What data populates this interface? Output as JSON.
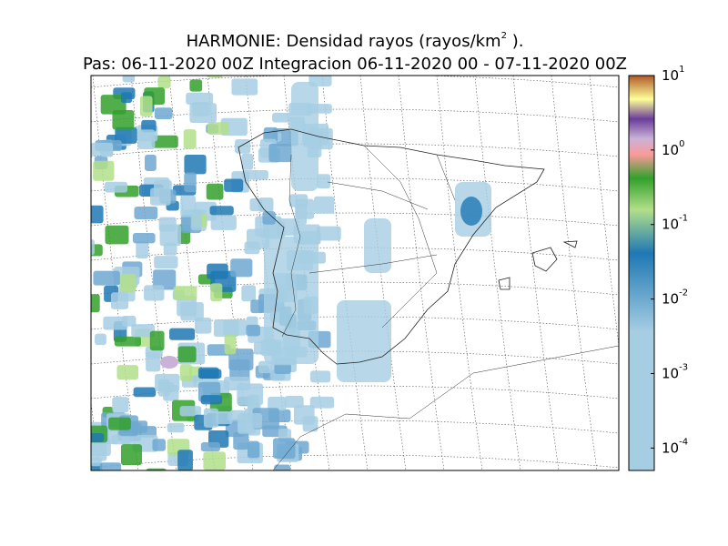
{
  "title": {
    "text": "HARMONIE: Densidad rayos  (rayos/km",
    "exponent": "2",
    "suffix": " )."
  },
  "subtitle": "Pas: 06-11-2020 00Z Integracion 06-11-2020 00 - 07-11-2020 00Z",
  "colorbar": {
    "scale": "log",
    "lim": [
      5e-05,
      10
    ],
    "ticks": [
      {
        "value": 10,
        "label": "10",
        "exponent": "1"
      },
      {
        "value": 1,
        "label": "10",
        "exponent": "0"
      },
      {
        "value": 0.1,
        "label": "10",
        "exponent": "-1"
      },
      {
        "value": 0.01,
        "label": "10",
        "exponent": "-2"
      },
      {
        "value": 0.001,
        "label": "10",
        "exponent": "-3"
      },
      {
        "value": 0.0001,
        "label": "10",
        "exponent": "-4"
      }
    ]
  }
}
